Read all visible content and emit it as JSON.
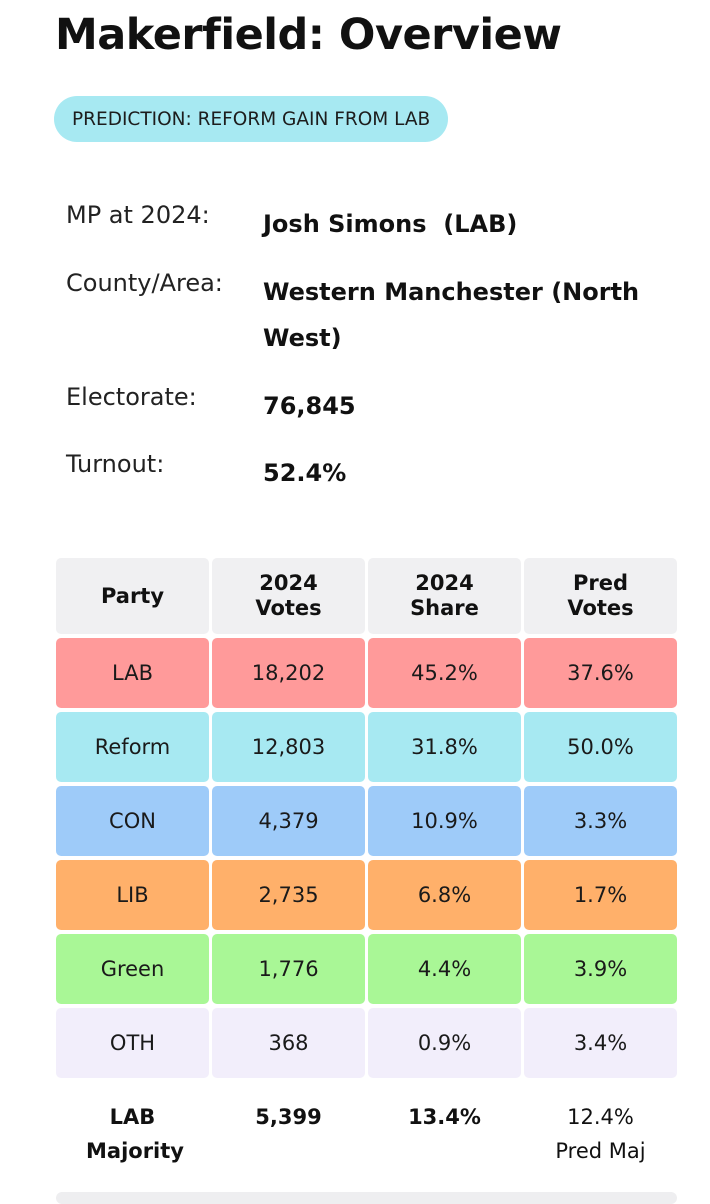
{
  "page": {
    "title": "Makerfield: Overview",
    "prediction": "PREDICTION: REFORM GAIN FROM LAB"
  },
  "info": {
    "mp_label": "MP at 2024:",
    "mp_value": "Josh Simons  (LAB)",
    "area_label": "County/Area:",
    "area_value": "Western Manchester (North West)",
    "electorate_label": "Electorate:",
    "electorate_value": "76,845",
    "turnout_label": "Turnout:",
    "turnout_value": "52.4%"
  },
  "table": {
    "headers": [
      "Party",
      "2024 Votes",
      "2024 Share",
      "Pred Votes"
    ],
    "rows": [
      {
        "party": "LAB",
        "votes": "18,202",
        "share": "45.2%",
        "pred": "37.6%",
        "color": "#ff9a9a"
      },
      {
        "party": "Reform",
        "votes": "12,803",
        "share": "31.8%",
        "pred": "50.0%",
        "color": "#a7e9f2"
      },
      {
        "party": "CON",
        "votes": "4,379",
        "share": "10.9%",
        "pred": "3.3%",
        "color": "#9ecbf9"
      },
      {
        "party": "LIB",
        "votes": "2,735",
        "share": "6.8%",
        "pred": "1.7%",
        "color": "#ffb06a"
      },
      {
        "party": "Green",
        "votes": "1,776",
        "share": "4.4%",
        "pred": "3.9%",
        "color": "#a9f796"
      },
      {
        "party": "OTH",
        "votes": "368",
        "share": "0.9%",
        "pred": "3.4%",
        "color": "#f2eefb"
      }
    ],
    "footer": {
      "label": "LAB Majority",
      "votes": "5,399",
      "share": "13.4%",
      "pred_value": "12.4%",
      "pred_label": "Pred Maj"
    }
  }
}
